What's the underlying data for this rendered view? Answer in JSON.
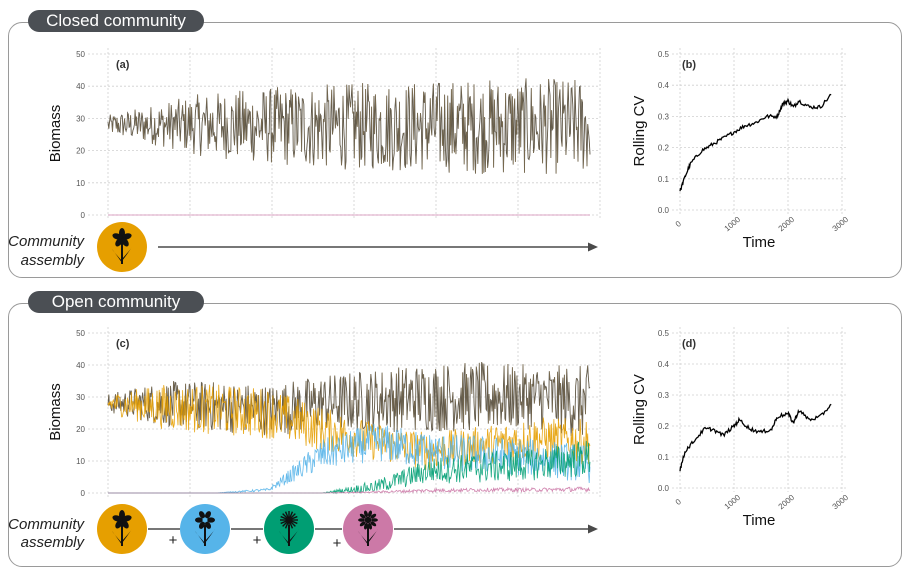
{
  "sections": {
    "closed": {
      "title": "Closed community",
      "assembly_label_1": "Community",
      "assembly_label_2": "assembly"
    },
    "open": {
      "title": "Open community",
      "assembly_label_1": "Community",
      "assembly_label_2": "assembly",
      "plus_sign": "+"
    }
  },
  "colors": {
    "total": "#3d3d3d",
    "species1": "#E69F00",
    "species2": "#56B4E9",
    "species3": "#009E73",
    "species4": "#CC79A7",
    "cv_line": "#000000",
    "grid": "#cfcfcf"
  },
  "icons": [
    "flower-orange-icon",
    "flower-blue-icon",
    "flower-green-icon",
    "flower-pink-icon"
  ],
  "chart_data": [
    {
      "panel": "(a)",
      "type": "line",
      "ylabel": "Biomass",
      "xlabel": "",
      "ylim": [
        0,
        50
      ],
      "yticks": [
        0,
        10,
        20,
        30,
        40,
        50
      ],
      "xlim": [
        0,
        3000
      ],
      "grid": true,
      "series": [
        {
          "color": "#3d3d3d",
          "mean": [
            28,
            28,
            27.5,
            27.5,
            27.5,
            27.5
          ],
          "amplitude": [
            3,
            10,
            13,
            14,
            15,
            15
          ]
        },
        {
          "color": "#CC79A7",
          "mean": [
            0,
            0
          ],
          "amplitude": [
            0,
            0
          ]
        }
      ]
    },
    {
      "panel": "(b)",
      "type": "line",
      "ylabel": "Rolling CV",
      "xlabel": "Time",
      "ylim": [
        0,
        0.5
      ],
      "yticks": [
        0.0,
        0.1,
        0.2,
        0.3,
        0.4,
        0.5
      ],
      "xlim": [
        0,
        3000
      ],
      "xticks": [
        0,
        1000,
        2000,
        3000
      ],
      "grid": true,
      "series": [
        {
          "color": "#000000",
          "x": [
            0,
            100,
            200,
            400,
            600,
            800,
            1000,
            1200,
            1400,
            1600,
            1800,
            1900,
            2000,
            2100,
            2200,
            2400,
            2600,
            2800
          ],
          "y": [
            0.06,
            0.11,
            0.15,
            0.19,
            0.21,
            0.23,
            0.25,
            0.27,
            0.28,
            0.3,
            0.3,
            0.34,
            0.35,
            0.33,
            0.35,
            0.33,
            0.33,
            0.37
          ]
        }
      ]
    },
    {
      "panel": "(c)",
      "type": "line",
      "ylabel": "Biomass",
      "xlabel": "",
      "ylim": [
        0,
        50
      ],
      "yticks": [
        0,
        10,
        20,
        30,
        40,
        50
      ],
      "xlim": [
        0,
        3000
      ],
      "grid": true,
      "series": [
        {
          "color": "#3d3d3d",
          "mean": [
            28,
            28,
            27,
            26,
            28,
            29,
            30,
            30,
            30,
            28
          ],
          "amplitude": [
            3,
            7,
            8,
            8,
            9,
            10,
            11,
            11,
            10,
            12
          ]
        },
        {
          "color": "#E69F00",
          "mean": [
            28,
            27,
            26,
            25,
            20,
            16,
            13,
            15,
            17,
            16
          ],
          "amplitude": [
            3,
            7,
            8,
            8,
            7,
            6,
            6,
            6,
            7,
            7
          ]
        },
        {
          "color": "#56B4E9",
          "mean": [
            0,
            0,
            0,
            1,
            12,
            16,
            13,
            12,
            11,
            9
          ],
          "amplitude": [
            0,
            0,
            0,
            0.5,
            5,
            6,
            6,
            6,
            6,
            6
          ]
        },
        {
          "color": "#009E73",
          "mean": [
            0,
            0,
            0,
            0,
            0,
            2,
            7,
            8,
            9,
            11
          ],
          "amplitude": [
            0,
            0,
            0,
            0,
            0,
            2,
            4,
            5,
            5,
            6
          ]
        },
        {
          "color": "#CC79A7",
          "mean": [
            0,
            0,
            0,
            0,
            0,
            0.3,
            0.8,
            1,
            1,
            1.2
          ],
          "amplitude": [
            0,
            0,
            0,
            0,
            0,
            0.3,
            0.6,
            0.6,
            0.6,
            0.8
          ]
        }
      ]
    },
    {
      "panel": "(d)",
      "type": "line",
      "ylabel": "Rolling CV",
      "xlabel": "Time",
      "ylim": [
        0,
        0.5
      ],
      "yticks": [
        0.0,
        0.1,
        0.2,
        0.3,
        0.4,
        0.5
      ],
      "xlim": [
        0,
        3000
      ],
      "xticks": [
        0,
        1000,
        2000,
        3000
      ],
      "grid": true,
      "series": [
        {
          "color": "#000000",
          "x": [
            0,
            100,
            250,
            450,
            600,
            800,
            1000,
            1100,
            1300,
            1500,
            1700,
            1800,
            2000,
            2100,
            2200,
            2400,
            2600,
            2800
          ],
          "y": [
            0.06,
            0.12,
            0.15,
            0.19,
            0.19,
            0.17,
            0.2,
            0.22,
            0.19,
            0.18,
            0.19,
            0.23,
            0.24,
            0.21,
            0.25,
            0.22,
            0.23,
            0.27
          ]
        }
      ]
    }
  ]
}
